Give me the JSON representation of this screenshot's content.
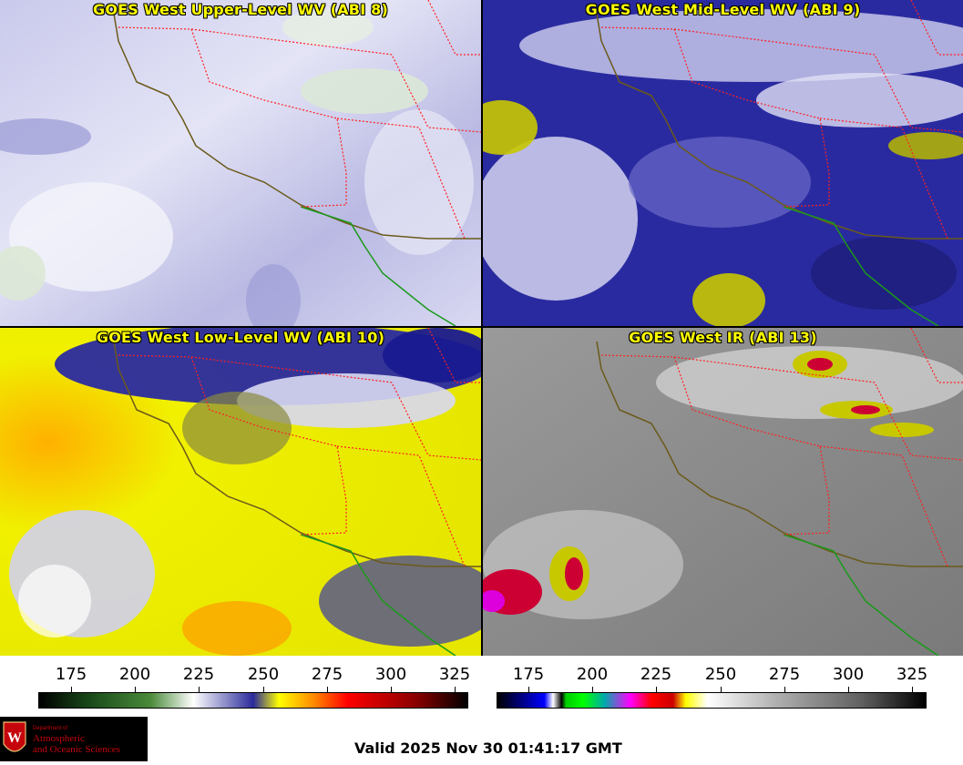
{
  "panels": [
    {
      "title": "GOES West Upper-Level WV (ABI 8)"
    },
    {
      "title": "GOES West Mid-Level WV (ABI 9)"
    },
    {
      "title": "GOES West Low-Level WV (ABI 10)"
    },
    {
      "title": "GOES West IR (ABI 13)"
    }
  ],
  "colorbar_left": {
    "ticks": [
      "175",
      "200",
      "225",
      "250",
      "275",
      "300",
      "325"
    ]
  },
  "colorbar_right": {
    "ticks": [
      "175",
      "200",
      "225",
      "250",
      "275",
      "300",
      "325"
    ]
  },
  "logo": {
    "line1": "Department of",
    "line2": "Atmospheric",
    "line3": "and Oceanic Sciences",
    "emblem_letter": "W"
  },
  "valid_text": "Valid 2025 Nov 30 01:41:17 GMT",
  "colors": {
    "wv_ramp": [
      "#000000",
      "#1a4a1a",
      "#4a8a3a",
      "#ffffff",
      "#2a2a9a",
      "#ffff00",
      "#ff8c00",
      "#ff0000",
      "#8a0000",
      "#000000"
    ],
    "ir_ramp": [
      "#000000",
      "#0000ff",
      "#ffffff",
      "#00ff00",
      "#00aaaa",
      "#ff00ff",
      "#ff0000",
      "#ffff00",
      "#ffffff",
      "#000000"
    ]
  }
}
